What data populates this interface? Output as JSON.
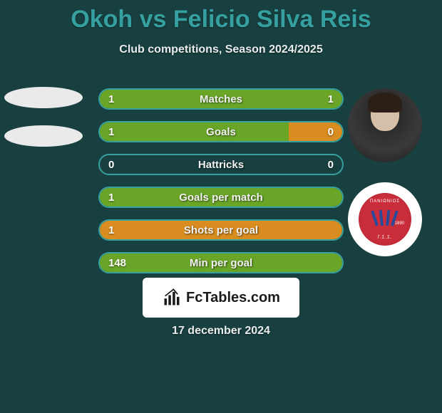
{
  "title": "Okoh vs Felicio Silva Reis",
  "subtitle": "Club competitions, Season 2024/2025",
  "date": "17 december 2024",
  "brand": "FcTables.com",
  "colors": {
    "background": "#184040",
    "title": "#36a0a0",
    "subtitle": "#e8ecec",
    "row_border": "#36a0a0",
    "fill_green": "#6aa528",
    "fill_orange": "#d98c1f",
    "oval": "#eaeaea",
    "badge_red": "#c92e3a",
    "badge_blue": "#2a4a9a"
  },
  "badge": {
    "top_text": "ΠΑΝΙΩΝΙΟΣ",
    "bottom_text": "Γ.Σ.Σ.",
    "year": "1890"
  },
  "rows": [
    {
      "label": "Matches",
      "left_val": "1",
      "right_val": "1",
      "left_pct": 50,
      "right_pct": 50,
      "left_color": "#6aa528",
      "right_color": "#6aa528"
    },
    {
      "label": "Goals",
      "left_val": "1",
      "right_val": "0",
      "left_pct": 78,
      "right_pct": 22,
      "left_color": "#6aa528",
      "right_color": "#d98c1f"
    },
    {
      "label": "Hattricks",
      "left_val": "0",
      "right_val": "0",
      "left_pct": 0,
      "right_pct": 0,
      "left_color": "#6aa528",
      "right_color": "#6aa528"
    },
    {
      "label": "Goals per match",
      "left_val": "1",
      "right_val": "",
      "left_pct": 100,
      "right_pct": 0,
      "left_color": "#6aa528",
      "right_color": "#6aa528"
    },
    {
      "label": "Shots per goal",
      "left_val": "1",
      "right_val": "",
      "left_pct": 100,
      "right_pct": 0,
      "left_color": "#d98c1f",
      "right_color": "#d98c1f"
    },
    {
      "label": "Min per goal",
      "left_val": "148",
      "right_val": "",
      "left_pct": 100,
      "right_pct": 0,
      "left_color": "#6aa528",
      "right_color": "#6aa528"
    }
  ]
}
